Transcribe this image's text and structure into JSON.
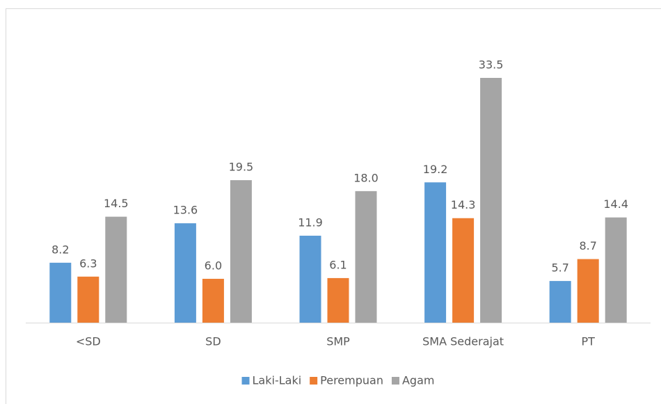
{
  "chart_data": {
    "type": "bar",
    "categories": [
      "<SD",
      "SD",
      "SMP",
      "SMA Sederajat",
      "PT"
    ],
    "series": [
      {
        "name": "Laki-Laki",
        "color": "#5b9bd5",
        "values": [
          8.2,
          13.6,
          11.9,
          19.2,
          5.7
        ],
        "value_labels": [
          "8.2",
          "13.6",
          "11.9",
          "19.2",
          "5.7"
        ]
      },
      {
        "name": "Perempuan",
        "color": "#ed7d31",
        "values": [
          6.3,
          6.0,
          6.1,
          14.3,
          8.7
        ],
        "value_labels": [
          "6.3",
          "6.0",
          "6.1",
          "14.3",
          "8.7"
        ]
      },
      {
        "name": "Agam",
        "color": "#a5a5a5",
        "values": [
          14.5,
          19.5,
          18.0,
          33.5,
          14.4
        ],
        "value_labels": [
          "14.5",
          "19.5",
          "18.0",
          "33.5",
          "14.4"
        ]
      }
    ],
    "legend": "bottom"
  }
}
